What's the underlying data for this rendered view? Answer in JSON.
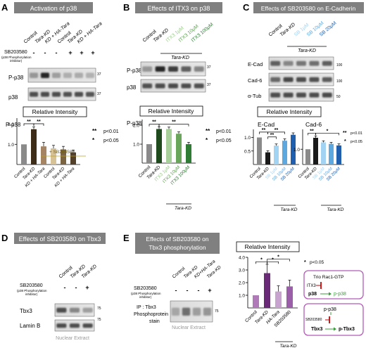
{
  "panels": {
    "A": {
      "letter": "A",
      "title": "Activation of p38",
      "lanes": [
        "Control",
        "Tara-KD",
        "KD + HA-Tara",
        "Control",
        "Tara-KD",
        "KD + HA-Tara"
      ],
      "treatment_label": "SB203580",
      "treatment_sub": [
        "(p38 Phosphorylation",
        "inhibitor)"
      ],
      "treatment_signs": [
        "-",
        "-",
        "-",
        "+",
        "+",
        "+"
      ],
      "blots": [
        "P-p38",
        "p38"
      ],
      "mw": [
        "37",
        "37"
      ],
      "chart_title": "Relative Intensity",
      "chart_ylabel": "P-p38",
      "ticks": [
        "1.0",
        "2.0"
      ],
      "annotation": "+ SB203580",
      "stars": [
        "**",
        "**"
      ],
      "xlabels": [
        "Control",
        "Tara-KD",
        "KD + HA-Tara",
        "Control",
        "Tara-KD",
        "KD + HA-Tara"
      ]
    },
    "B": {
      "letter": "B",
      "title": "Effects of ITX3 on p38",
      "lanes": [
        "Control",
        "Tara-KD",
        "ITX3 1μM",
        "ITX3 10μM",
        "ITX3 100μM"
      ],
      "group_label": "Tara-KD",
      "blots": [
        "P-p38",
        "p38"
      ],
      "mw": [
        "37",
        "37"
      ],
      "chart_title": "Relative Intensity",
      "chart_ylabel": "P-p38",
      "ticks": [
        "1.0",
        "2.0"
      ],
      "stars": [
        "**",
        "**"
      ],
      "xlabels": [
        "Control",
        "Tara-KD",
        "ITX3 1μM",
        "ITX3 10μM",
        "ITX3 100μM"
      ],
      "xgroup": "Tara-KD"
    },
    "C": {
      "letter": "C",
      "title": "Effects of SB203580 on E-Cadherin",
      "lanes": [
        "Control",
        "Tara-KD",
        "SB 1μM",
        "SB 10μM",
        "SB 20μM"
      ],
      "group_label": "Tara-KD",
      "blots": [
        "E-Cad",
        "Cad-6",
        "α-Tub"
      ],
      "mw": [
        "100",
        "100",
        "50"
      ],
      "chart_title": "Relative Intensity",
      "chart1_label": "E-Cad",
      "chart2_label": "Cad-6",
      "ticks1": [
        "0.5",
        "1.0"
      ],
      "ticks2": [
        "1.0"
      ],
      "stars1": [
        "**",
        "**",
        "**"
      ],
      "stars2": [
        "**",
        "*"
      ],
      "xlabels": [
        "Control",
        "Tara-KD",
        "SB 1μM",
        "SB 10μM",
        "SB 20μM"
      ],
      "xgroup": "Tara-KD"
    },
    "D": {
      "letter": "D",
      "title": "Effects of SB203580 on Tbx3",
      "lanes": [
        "Control",
        "Tara-KD",
        "Tara-KD"
      ],
      "treatment_label": "SB203580",
      "treatment_sub": [
        "(p38 Phosphorylation",
        "inhibitor)"
      ],
      "treatment_signs": [
        "-",
        "-",
        "+"
      ],
      "blots": [
        "Tbx3",
        "Lamin B"
      ],
      "mw": [
        "75",
        "75"
      ],
      "footer": "Nuclear Extract"
    },
    "E": {
      "letter": "E",
      "title_lines": [
        "Effects of SB203580 on",
        "Tbx3 phosphorylation"
      ],
      "lanes": [
        "Control",
        "Tara-KD",
        "KD+HA-Tara",
        "Tara-KD"
      ],
      "treatment_label": "SB203580",
      "treatment_sub": [
        "(p38 Phosphorylation",
        "inhibitor)"
      ],
      "treatment_signs": [
        "-",
        "-",
        "-",
        "+"
      ],
      "ip_label": [
        "IP : Tbx3",
        "Phosphoprotein",
        "stain"
      ],
      "mw": "75",
      "footer": "Nuclear Extract",
      "chart_title": "Relative Intensity",
      "ticks": [
        "1.0",
        "2.0",
        "3.0",
        "4.0"
      ],
      "stars": [
        "*",
        "*",
        "*"
      ],
      "xlabels": [
        "Control",
        "Tara-KD",
        "HA-Tara",
        "SB203580"
      ],
      "xgroup": "Tara-KD",
      "diagram": {
        "box1_title": "Trio Rac1-GTP",
        "box1_inhib": "ITX3",
        "box1_from": "p38",
        "box1_to": "p-p38",
        "box2_top": "p-p38",
        "box2_inhib": "SB203580",
        "box2_from": "Tbx3",
        "box2_to": "p-Tbx3"
      }
    }
  },
  "legends": {
    "two_star": "**",
    "one_star": "*",
    "p01": "p<0.01",
    "p05": "p<0.05"
  },
  "chart_data": [
    {
      "type": "bar",
      "panel": "A",
      "title": "Relative Intensity",
      "ylabel": "P-p38",
      "categories": [
        "Control",
        "Tara-KD",
        "KD + HA-Tara",
        "Control",
        "Tara-KD",
        "KD + HA-Tara"
      ],
      "values": [
        1.0,
        1.75,
        0.9,
        0.8,
        0.75,
        0.6
      ],
      "errors": [
        0.0,
        0.12,
        0.2,
        0.15,
        0.15,
        0.12
      ],
      "colors": [
        "#8a8a8a",
        "#3d2c18",
        "#a48462",
        "#d7c298",
        "#7a6340",
        "#52402a"
      ],
      "ylim": [
        0,
        2.3
      ]
    },
    {
      "type": "bar",
      "panel": "B",
      "title": "Relative Intensity",
      "ylabel": "P-p38",
      "categories": [
        "Control",
        "Tara-KD",
        "ITX3 1μM",
        "ITX3 10μM",
        "ITX3 100μM"
      ],
      "values": [
        1.0,
        1.8,
        1.8,
        1.55,
        1.0
      ],
      "errors": [
        0.0,
        0.12,
        0.1,
        0.1,
        0.1
      ],
      "colors": [
        "#8a8a8a",
        "#1e4a1e",
        "#a7cf9a",
        "#6aa55c",
        "#2f7d34"
      ],
      "ylim": [
        0,
        2.3
      ]
    },
    {
      "type": "bar",
      "panel": "C",
      "title": "E-Cad",
      "ylabel": "",
      "categories": [
        "Control",
        "Tara-KD",
        "SB 1μM",
        "SB 10μM",
        "SB 20μM"
      ],
      "values": [
        1.0,
        0.45,
        0.7,
        0.88,
        1.1
      ],
      "errors": [
        0.0,
        0.06,
        0.06,
        0.07,
        0.07
      ],
      "colors": [
        "#8a8a8a",
        "#1a1a1a",
        "#a3d3f2",
        "#5ea8e0",
        "#1f5fae"
      ],
      "ylim": [
        0,
        1.3
      ]
    },
    {
      "type": "bar",
      "panel": "C",
      "title": "Cad-6",
      "ylabel": "",
      "categories": [
        "Control",
        "Tara-KD",
        "SB 1μM",
        "SB 10μM",
        "SB 20μM"
      ],
      "values": [
        1.0,
        1.75,
        1.45,
        1.35,
        1.25
      ],
      "errors": [
        0.0,
        0.12,
        0.1,
        0.1,
        0.1
      ],
      "colors": [
        "#8a8a8a",
        "#1a1a1a",
        "#a3d3f2",
        "#5ea8e0",
        "#1f5fae"
      ],
      "ylim": [
        0,
        2.3
      ]
    },
    {
      "type": "bar",
      "panel": "E",
      "title": "Relative Intensity",
      "ylabel": "",
      "categories": [
        "Control",
        "Tara-KD",
        "HA-Tara",
        "SB203580"
      ],
      "values": [
        1.0,
        2.75,
        1.3,
        1.7
      ],
      "errors": [
        0.0,
        0.7,
        0.45,
        0.5
      ],
      "colors": [
        "#b07ab8",
        "#6a2a78",
        "#c9a3cf",
        "#9a5fa8"
      ],
      "ylim": [
        0,
        4.0
      ]
    }
  ]
}
